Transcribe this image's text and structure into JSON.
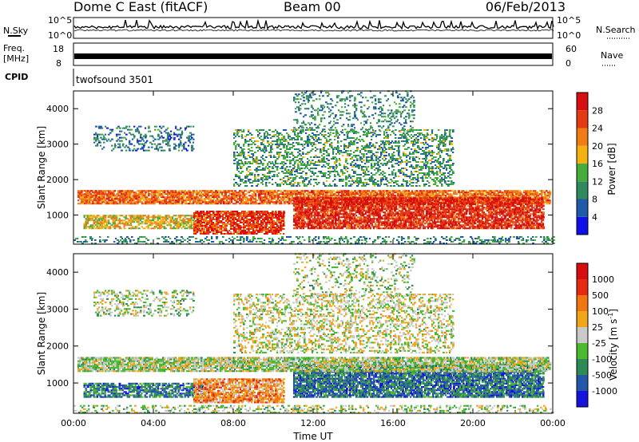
{
  "header": {
    "station": "Dome C East (fitACF)",
    "beam": "Beam 00",
    "date": "06/Feb/2013"
  },
  "summary_panels": {
    "nsky_label": "N.Sky",
    "nsky_ticks": [
      "10^5",
      "10^0"
    ],
    "nsearch_label": "N.Search",
    "freq_label": "Freq.",
    "freq_unit": "[MHz]",
    "freq_ticks": [
      "18",
      "8"
    ],
    "nave_ticks": [
      "60",
      "0"
    ],
    "nave_label": "Nave",
    "cpid_label": "CPID",
    "cpid_text": "twofsound 3501"
  },
  "colors": {
    "power_scale": [
      "#1010e6",
      "#1e5aa8",
      "#2f8a5e",
      "#46ad3c",
      "#f3b112",
      "#f17c14",
      "#e63a12",
      "#d80f10"
    ],
    "velocity_scale": [
      "#1414dd",
      "#2457a8",
      "#2e8b57",
      "#4cba2e",
      "#c9c9c9",
      "#f1a51b",
      "#f17510",
      "#e82a14",
      "#d80d0d"
    ]
  },
  "chart_data": [
    {
      "type": "heatmap",
      "quantity": "Power",
      "ylabel": "Slant Range [km]",
      "xlabel": "",
      "x_ticks": [
        "00:00",
        "04:00",
        "08:00",
        "12:00",
        "16:00",
        "20:00",
        "00:00"
      ],
      "y_ticks": [
        1000,
        2000,
        3000,
        4000
      ],
      "xlim_hours": [
        0,
        24
      ],
      "ylim_km": [
        180,
        4500
      ],
      "colorbar": {
        "label": "Power [dB]",
        "ticks": [
          4,
          8,
          12,
          16,
          20,
          24,
          28
        ]
      },
      "structures": [
        {
          "t0": 0.2,
          "t1": 23.8,
          "r0": 1300,
          "r1": 1700,
          "density": 0.85,
          "level": 0.72
        },
        {
          "t0": 0.5,
          "t1": 6.5,
          "r0": 600,
          "r1": 1000,
          "density": 0.7,
          "level": 0.55
        },
        {
          "t0": 6.0,
          "t1": 10.5,
          "r0": 450,
          "r1": 1100,
          "density": 0.8,
          "level": 0.82
        },
        {
          "t0": 11.0,
          "t1": 23.5,
          "r0": 600,
          "r1": 1500,
          "density": 0.85,
          "level": 0.85
        },
        {
          "t0": 8.0,
          "t1": 19.0,
          "r0": 1800,
          "r1": 3400,
          "density": 0.35,
          "level": 0.35
        },
        {
          "t0": 1.0,
          "t1": 6.0,
          "r0": 2800,
          "r1": 3500,
          "density": 0.3,
          "level": 0.25
        },
        {
          "t0": 11.0,
          "t1": 17.0,
          "r0": 3300,
          "r1": 4500,
          "density": 0.2,
          "level": 0.3
        },
        {
          "t0": 0.0,
          "t1": 24.0,
          "r0": 180,
          "r1": 400,
          "density": 0.3,
          "level": 0.3
        }
      ]
    },
    {
      "type": "heatmap",
      "quantity": "Velocity",
      "ylabel": "Slant Range [km]",
      "xlabel": "Time UT",
      "x_ticks": [
        "00:00",
        "04:00",
        "08:00",
        "12:00",
        "16:00",
        "20:00",
        "00:00"
      ],
      "y_ticks": [
        1000,
        2000,
        3000,
        4000
      ],
      "xlim_hours": [
        0,
        24
      ],
      "ylim_km": [
        180,
        4500
      ],
      "colorbar": {
        "label": "Velocity [m s^-1]",
        "ticks": [
          1000,
          500,
          100,
          25,
          -25,
          -100,
          -500,
          -1000
        ]
      },
      "structures": [
        {
          "t0": 0.2,
          "t1": 23.8,
          "r0": 1300,
          "r1": 1700,
          "density": 0.85,
          "level": 0.45
        },
        {
          "t0": 0.5,
          "t1": 6.5,
          "r0": 600,
          "r1": 1000,
          "density": 0.7,
          "level": 0.22
        },
        {
          "t0": 6.0,
          "t1": 10.5,
          "r0": 450,
          "r1": 1100,
          "density": 0.8,
          "level": 0.65
        },
        {
          "t0": 11.0,
          "t1": 23.5,
          "r0": 600,
          "r1": 1500,
          "density": 0.85,
          "level": 0.2
        },
        {
          "t0": 8.0,
          "t1": 19.0,
          "r0": 1800,
          "r1": 3400,
          "density": 0.35,
          "level": 0.5
        },
        {
          "t0": 1.0,
          "t1": 6.0,
          "r0": 2800,
          "r1": 3500,
          "density": 0.3,
          "level": 0.45
        },
        {
          "t0": 11.0,
          "t1": 17.0,
          "r0": 3300,
          "r1": 4500,
          "density": 0.2,
          "level": 0.45
        },
        {
          "t0": 0.0,
          "t1": 24.0,
          "r0": 180,
          "r1": 400,
          "density": 0.3,
          "level": 0.45
        }
      ]
    }
  ]
}
